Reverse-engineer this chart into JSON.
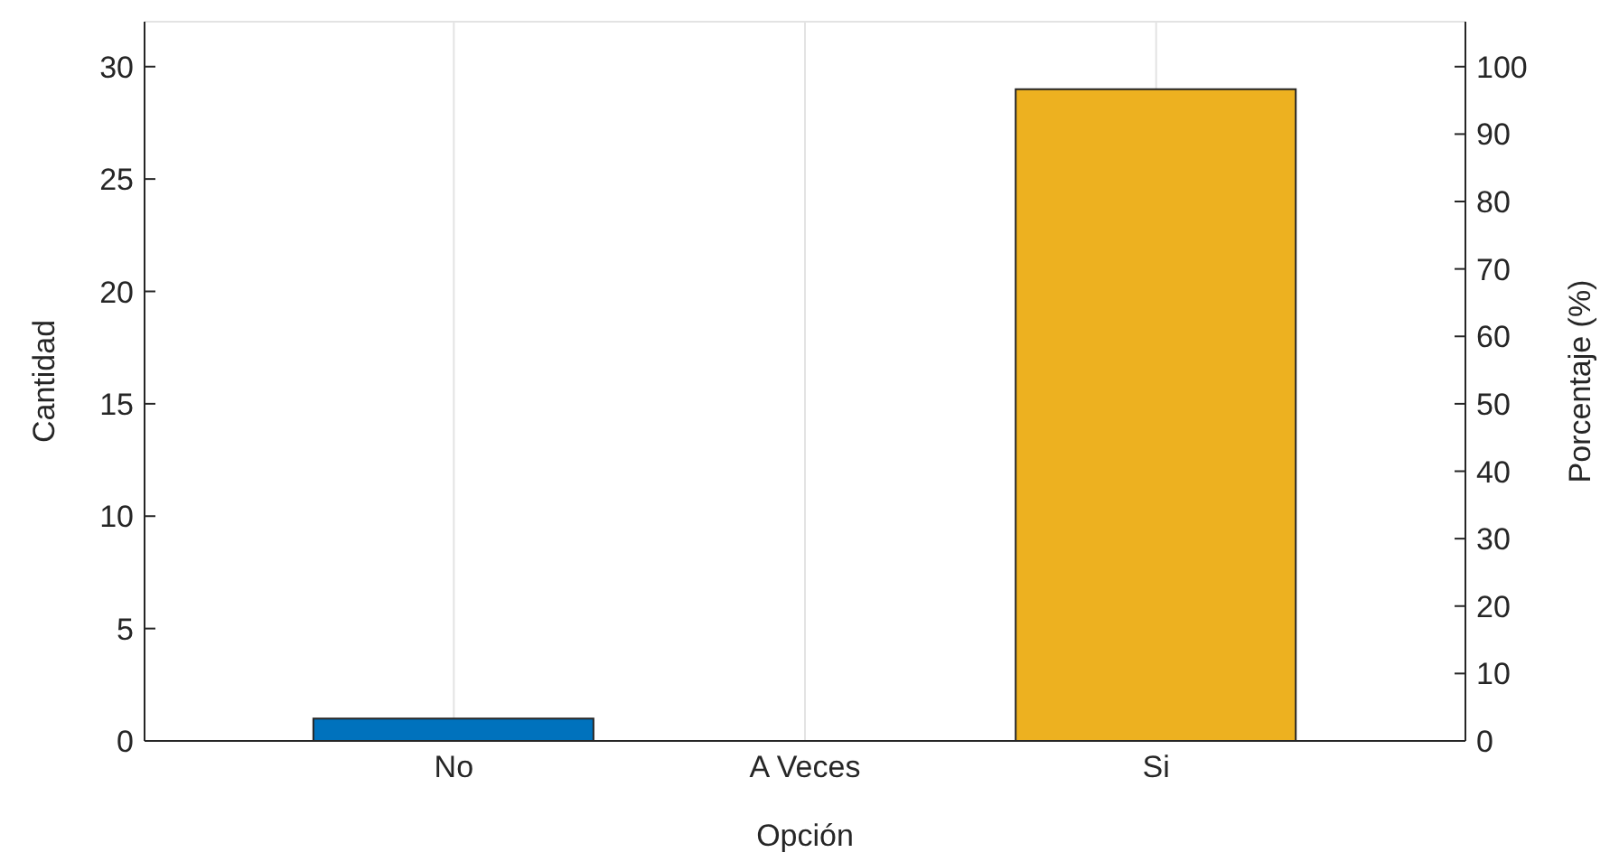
{
  "chart_data": {
    "type": "bar",
    "xlabel": "Opción",
    "ylabel": "Cantidad",
    "y2label": "Porcentaje (%)",
    "categories": [
      "No",
      "A Veces",
      "Si"
    ],
    "values": [
      1,
      0,
      29
    ],
    "colors": [
      "#0072bd",
      "#d95319",
      "#edb120"
    ],
    "ylim": [
      0,
      32
    ],
    "yticks": [
      0,
      5,
      10,
      15,
      20,
      25,
      30
    ],
    "y2lim": [
      0,
      106.67
    ],
    "y2ticks": [
      0,
      10,
      20,
      30,
      40,
      50,
      60,
      70,
      80,
      90,
      100
    ],
    "grid": true
  }
}
